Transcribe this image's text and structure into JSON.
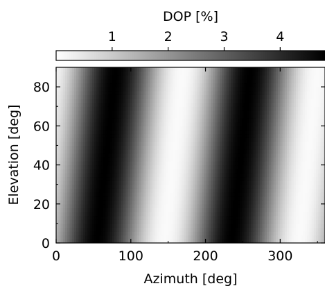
{
  "chart_data": {
    "type": "heatmap",
    "title": "",
    "xlabel": "Azimuth [deg]",
    "ylabel": "Elevation [deg]",
    "xlim": [
      0,
      360
    ],
    "ylim": [
      0,
      90
    ],
    "x_ticks": [
      0,
      100,
      200,
      300
    ],
    "y_ticks": [
      0,
      20,
      40,
      60,
      80
    ],
    "colorbar": {
      "label": "DOP [%]",
      "position": "top",
      "ticks": [
        1,
        2,
        3,
        4
      ],
      "range": [
        0,
        4.8
      ],
      "colormap": "gray_r"
    },
    "pattern": {
      "description_values": {
        "azimuth_of_maxima": [
          80,
          260
        ],
        "azimuth_of_minima": [
          170,
          350
        ],
        "max_dop": 4.8,
        "min_dop": 0.1
      }
    },
    "grid": false,
    "legend": "none"
  }
}
